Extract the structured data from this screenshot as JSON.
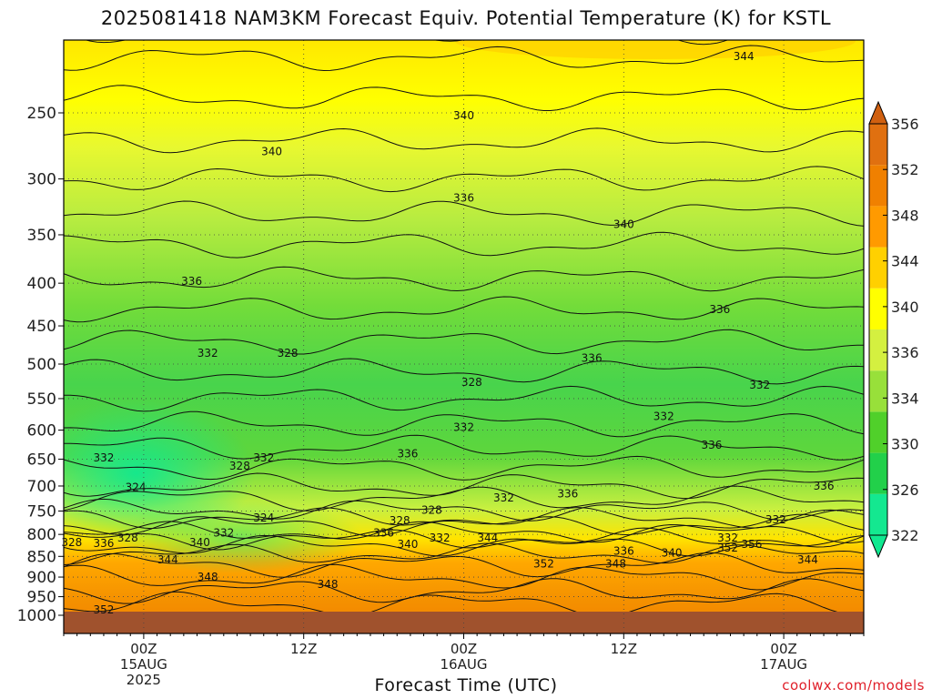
{
  "chart_data": {
    "type": "heatmap",
    "title": "2025081418 NAM3KM Forecast Equiv. Potential Temperature (K) for KSTL",
    "xlabel": "Forecast Time (UTC)",
    "ylabel": "",
    "y_ticks": [
      "250",
      "300",
      "350",
      "400",
      "450",
      "500",
      "550",
      "600",
      "650",
      "700",
      "750",
      "800",
      "850",
      "900",
      "950",
      "1000"
    ],
    "y_range": [
      1000,
      200
    ],
    "x_ticks": [
      {
        "line1": "00Z",
        "line2": "15AUG",
        "line3": "2025"
      },
      {
        "line1": "12Z",
        "line2": "",
        "line3": ""
      },
      {
        "line1": "00Z",
        "line2": "16AUG",
        "line3": ""
      },
      {
        "line1": "12Z",
        "line2": "",
        "line3": ""
      },
      {
        "line1": "00Z",
        "line2": "17AUG",
        "line3": ""
      }
    ],
    "colorbar": {
      "levels": [
        "322",
        "326",
        "330",
        "334",
        "336",
        "340",
        "344",
        "348",
        "352",
        "356"
      ],
      "colors": [
        "#14e890",
        "#22d04a",
        "#50d02a",
        "#98e03a",
        "#d4f040",
        "#ffff00",
        "#ffd000",
        "#ff9a00",
        "#f08000",
        "#e07010"
      ]
    },
    "contour_labels": [
      {
        "text": "344",
        "t": 0.85,
        "p": 214
      },
      {
        "text": "340",
        "t": 0.5,
        "p": 252
      },
      {
        "text": "340",
        "t": 0.26,
        "p": 278
      },
      {
        "text": "336",
        "t": 0.5,
        "p": 316
      },
      {
        "text": "340",
        "t": 0.7,
        "p": 340
      },
      {
        "text": "336",
        "t": 0.16,
        "p": 398
      },
      {
        "text": "336",
        "t": 0.82,
        "p": 430
      },
      {
        "text": "332",
        "t": 0.18,
        "p": 485
      },
      {
        "text": "328",
        "t": 0.28,
        "p": 485
      },
      {
        "text": "336",
        "t": 0.66,
        "p": 492
      },
      {
        "text": "328",
        "t": 0.51,
        "p": 526
      },
      {
        "text": "332",
        "t": 0.87,
        "p": 530
      },
      {
        "text": "332",
        "t": 0.75,
        "p": 578
      },
      {
        "text": "332",
        "t": 0.5,
        "p": 595
      },
      {
        "text": "336",
        "t": 0.81,
        "p": 625
      },
      {
        "text": "336",
        "t": 0.43,
        "p": 640
      },
      {
        "text": "332",
        "t": 0.05,
        "p": 648
      },
      {
        "text": "332",
        "t": 0.25,
        "p": 648
      },
      {
        "text": "328",
        "t": 0.22,
        "p": 662
      },
      {
        "text": "336",
        "t": 0.95,
        "p": 700
      },
      {
        "text": "324",
        "t": 0.09,
        "p": 703
      },
      {
        "text": "336",
        "t": 0.63,
        "p": 715
      },
      {
        "text": "332",
        "t": 0.55,
        "p": 723
      },
      {
        "text": "328",
        "t": 0.46,
        "p": 748
      },
      {
        "text": "324",
        "t": 0.25,
        "p": 764
      },
      {
        "text": "332",
        "t": 0.89,
        "p": 768
      },
      {
        "text": "328",
        "t": 0.42,
        "p": 770
      },
      {
        "text": "332",
        "t": 0.2,
        "p": 797
      },
      {
        "text": "336",
        "t": 0.4,
        "p": 797
      },
      {
        "text": "328",
        "t": 0.08,
        "p": 808
      },
      {
        "text": "332",
        "t": 0.47,
        "p": 808
      },
      {
        "text": "344",
        "t": 0.53,
        "p": 808
      },
      {
        "text": "332",
        "t": 0.83,
        "p": 808
      },
      {
        "text": "328",
        "t": 0.01,
        "p": 818
      },
      {
        "text": "336",
        "t": 0.05,
        "p": 820
      },
      {
        "text": "340",
        "t": 0.17,
        "p": 818
      },
      {
        "text": "340",
        "t": 0.43,
        "p": 822
      },
      {
        "text": "356",
        "t": 0.86,
        "p": 822
      },
      {
        "text": "352",
        "t": 0.83,
        "p": 830
      },
      {
        "text": "336",
        "t": 0.7,
        "p": 838
      },
      {
        "text": "340",
        "t": 0.76,
        "p": 842
      },
      {
        "text": "344",
        "t": 0.13,
        "p": 858
      },
      {
        "text": "344",
        "t": 0.93,
        "p": 858
      },
      {
        "text": "352",
        "t": 0.6,
        "p": 868
      },
      {
        "text": "348",
        "t": 0.69,
        "p": 868
      },
      {
        "text": "348",
        "t": 0.18,
        "p": 900
      },
      {
        "text": "348",
        "t": 0.33,
        "p": 918
      },
      {
        "text": "352",
        "t": 0.05,
        "p": 985
      }
    ]
  },
  "credit": "coolwx.com/models"
}
